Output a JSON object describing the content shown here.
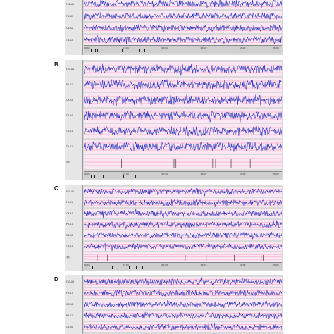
{
  "panels": [
    {
      "letter": "",
      "channels": [
        "Fp2-A2",
        "F4-A2",
        "C4-A2",
        "T4-A2"
      ],
      "time_ticks": [
        "00:00",
        "01:00",
        "02:00",
        "03:00",
        "04:00",
        "05:00"
      ],
      "colors": {
        "trace": "#1c2fb8",
        "background": "#fbe6f4",
        "grid": "#ff3b6b"
      }
    },
    {
      "letter": "B",
      "channels": [
        "Fp1-A1",
        "F3-A1",
        "C3-A1",
        "O1-A1",
        "T3-A1",
        "T5-A1",
        "事件"
      ],
      "time_ticks": [
        "00:00",
        "01:00",
        "02:00",
        "03:00",
        "04:00",
        "05:00"
      ],
      "colors": {
        "trace": "#1c2fb8",
        "background": "#fbe6f4",
        "grid": "#ff3b6b"
      }
    },
    {
      "letter": "C",
      "channels": [
        "Fp1-A1",
        "F3-A1",
        "C3-A1",
        "P3-A1",
        "O1-A1",
        "T3-A1",
        "事件"
      ],
      "time_ticks": [
        "00:00",
        "01:00",
        "02:00",
        "03:00",
        "04:00",
        "05:00"
      ],
      "colors": {
        "trace": "#1c2fb8",
        "background": "#fbe6f4",
        "grid": "#ff3b6b"
      }
    },
    {
      "letter": "D",
      "channels": [
        "Fp1-A1",
        "F3-A1",
        "C3-A1",
        "P3-A1",
        "O1-A1"
      ],
      "time_ticks": [],
      "colors": {
        "trace": "#1c2fb8",
        "background": "#fbe6f4",
        "grid": "#ff3b6b"
      }
    }
  ]
}
